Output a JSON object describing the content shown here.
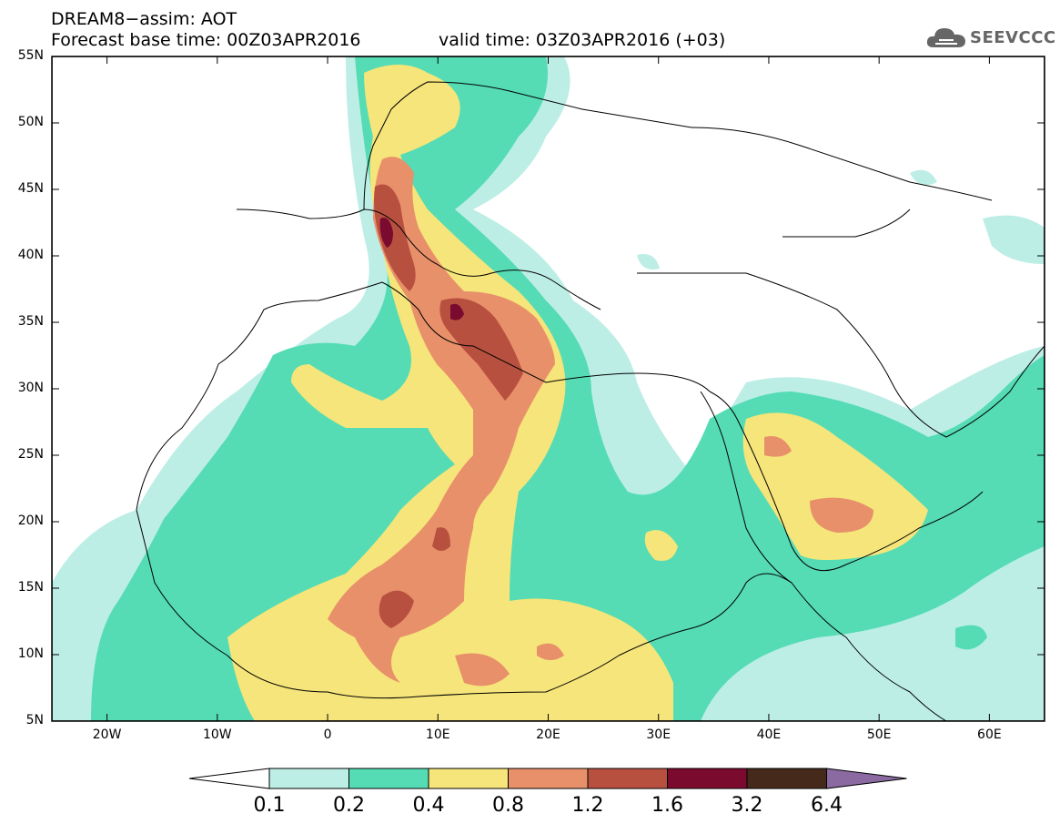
{
  "header": {
    "title_line1": "DREAM8−assim: AOT",
    "title_line2": "Forecast base time: 00Z03APR2016",
    "valid_time": "valid time: 03Z03APR2016 (+03)",
    "logo_text": "SEEVCCC",
    "logo_icon": "cloud-icon"
  },
  "map": {
    "variable": "AOT",
    "lon_range": [
      -25,
      65
    ],
    "lat_range": [
      5,
      55
    ],
    "lat_labels": [
      "55N",
      "50N",
      "45N",
      "40N",
      "35N",
      "30N",
      "25N",
      "20N",
      "15N",
      "10N",
      "5N"
    ],
    "lon_labels": [
      "20W",
      "10W",
      "0",
      "10E",
      "20E",
      "30E",
      "40E",
      "50E",
      "60E"
    ]
  },
  "colorbar": {
    "levels": [
      "0.1",
      "0.2",
      "0.4",
      "0.8",
      "1.2",
      "1.6",
      "3.2",
      "6.4"
    ],
    "colors": [
      "#ffffff",
      "#bdeee6",
      "#55dcb4",
      "#f6e57a",
      "#e8906a",
      "#b85040",
      "#7a0a2e",
      "#45291a",
      "#8a6aa0"
    ]
  }
}
